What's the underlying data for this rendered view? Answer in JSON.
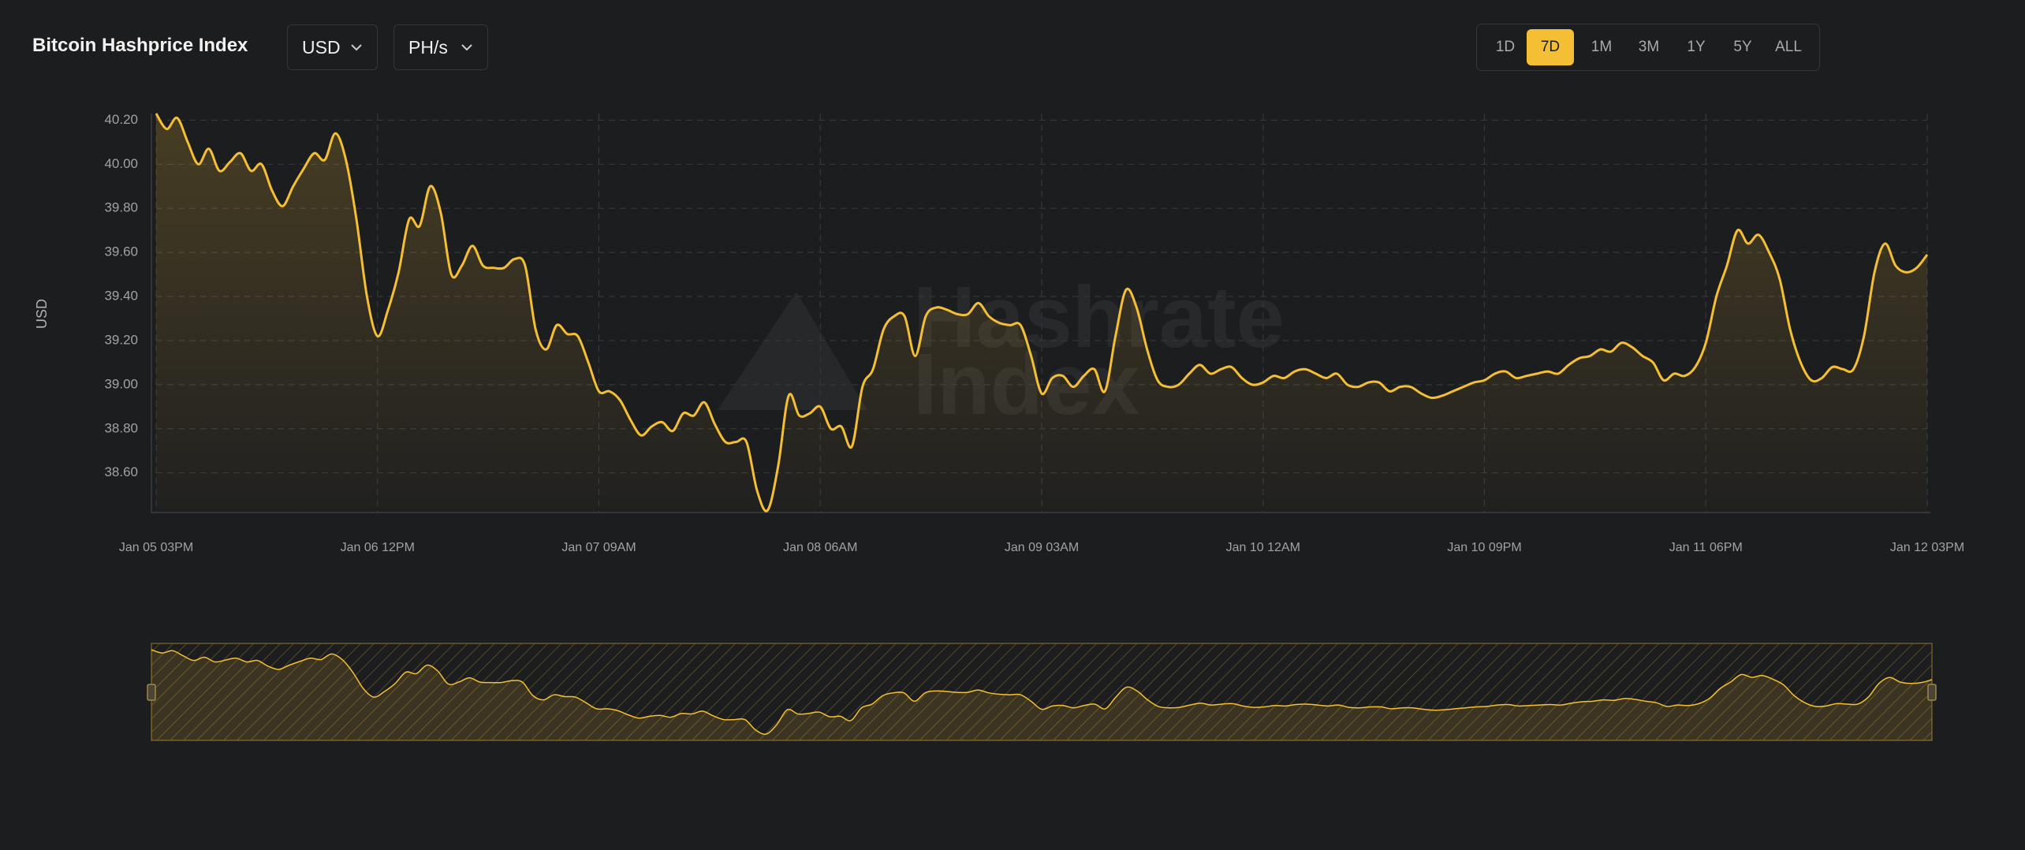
{
  "header": {
    "title": "Bitcoin Hashprice Index",
    "currency": "USD",
    "unit": "PH/s"
  },
  "ranges": [
    "1D",
    "7D",
    "1M",
    "3M",
    "1Y",
    "5Y",
    "ALL"
  ],
  "active_range": "7D",
  "watermark": [
    "Hashrate",
    "Index"
  ],
  "chart_data": {
    "type": "area",
    "y_label": "USD",
    "color": "#f4bf35",
    "x_labels": [
      "Jan 05 03PM",
      "Jan 06 12PM",
      "Jan 07 09AM",
      "Jan 08 06AM",
      "Jan 09 03AM",
      "Jan 10 12AM",
      "Jan 10 09PM",
      "Jan 11 06PM",
      "Jan 12 03PM"
    ],
    "ylim": [
      38.42,
      40.23
    ],
    "yticks": [
      {
        "value": 38.6,
        "label": "38.60"
      },
      {
        "value": 38.8,
        "label": "38.80"
      },
      {
        "value": 39,
        "label": "39.00"
      },
      {
        "value": 39.2,
        "label": "39.20"
      },
      {
        "value": 39.4,
        "label": "39.40"
      },
      {
        "value": 39.6,
        "label": "39.60"
      },
      {
        "value": 39.8,
        "label": "39.80"
      },
      {
        "value": 40,
        "label": "40.00"
      },
      {
        "value": 40.2,
        "label": "40.20"
      }
    ],
    "grid": true,
    "navigator": true,
    "values": [
      40.23,
      40.16,
      40.21,
      40.1,
      40.0,
      40.07,
      39.97,
      40.01,
      40.05,
      39.97,
      40.0,
      39.88,
      39.81,
      39.9,
      39.98,
      40.05,
      40.02,
      40.14,
      40.02,
      39.75,
      39.4,
      39.22,
      39.34,
      39.51,
      39.75,
      39.72,
      39.9,
      39.78,
      39.5,
      39.54,
      39.63,
      39.54,
      39.53,
      39.53,
      39.57,
      39.54,
      39.25,
      39.16,
      39.27,
      39.23,
      39.22,
      39.1,
      38.97,
      38.97,
      38.93,
      38.84,
      38.77,
      38.81,
      38.83,
      38.79,
      38.87,
      38.86,
      38.92,
      38.82,
      38.74,
      38.74,
      38.74,
      38.52,
      38.43,
      38.63,
      38.95,
      38.86,
      38.87,
      38.9,
      38.8,
      38.81,
      38.72,
      38.99,
      39.07,
      39.25,
      39.31,
      39.31,
      39.13,
      39.31,
      39.35,
      39.34,
      39.32,
      39.32,
      39.37,
      39.31,
      39.28,
      39.27,
      39.27,
      39.13,
      38.96,
      39.03,
      39.04,
      38.99,
      39.04,
      39.07,
      38.97,
      39.22,
      39.43,
      39.35,
      39.16,
      39.02,
      38.99,
      39.0,
      39.05,
      39.09,
      39.05,
      39.07,
      39.08,
      39.03,
      39.0,
      39.01,
      39.04,
      39.03,
      39.06,
      39.07,
      39.05,
      39.03,
      39.05,
      39.0,
      38.99,
      39.01,
      39.01,
      38.97,
      38.99,
      38.99,
      38.96,
      38.94,
      38.95,
      38.97,
      38.99,
      39.01,
      39.02,
      39.05,
      39.06,
      39.03,
      39.04,
      39.05,
      39.06,
      39.05,
      39.09,
      39.12,
      39.13,
      39.16,
      39.15,
      39.19,
      39.17,
      39.13,
      39.1,
      39.02,
      39.05,
      39.04,
      39.08,
      39.19,
      39.4,
      39.54,
      39.7,
      39.64,
      39.68,
      39.6,
      39.48,
      39.25,
      39.1,
      39.02,
      39.03,
      39.08,
      39.07,
      39.07,
      39.22,
      39.51,
      39.64,
      39.54,
      39.51,
      39.53,
      39.59
    ]
  }
}
